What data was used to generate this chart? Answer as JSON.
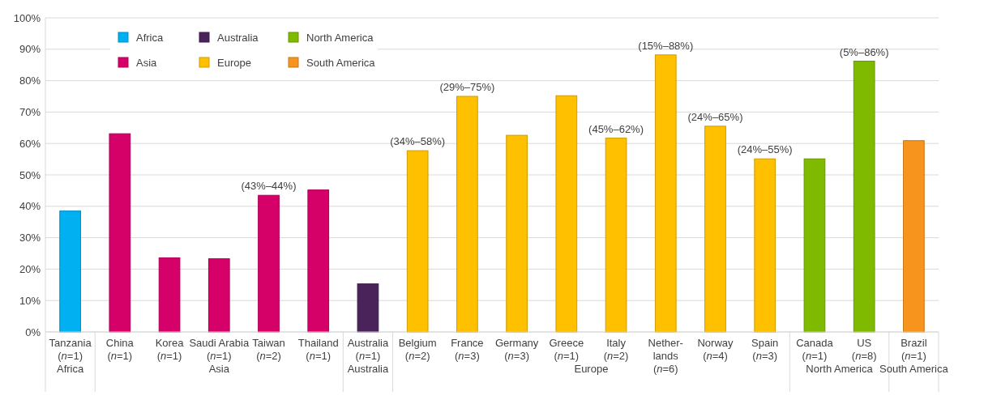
{
  "chart_data": {
    "type": "bar",
    "categories": [
      "Tanzania\n(n=1)",
      "China\n(n=1)",
      "Korea\n(n=1)",
      "Saudi Arabia\n(n=1)",
      "Taiwan\n(n=2)",
      "Thailand\n(n=1)",
      "Australia\n(n=1)",
      "Belgium\n(n=2)",
      "France\n(n=3)",
      "Germany\n(n=3)",
      "Greece\n(n=1)",
      "Italy\n(n=2)",
      "Nether-\nlands\n(n=6)",
      "Norway\n(n=4)",
      "Spain\n(n=3)",
      "Canada\n(n=1)",
      "US\n(n=8)",
      "Brazil\n(n=1)"
    ],
    "series": [
      {
        "name": "Africa",
        "color": "#00b0f0",
        "values": [
          38.5,
          null,
          null,
          null,
          null,
          null,
          null,
          null,
          null,
          null,
          null,
          null,
          null,
          null,
          null,
          null,
          null,
          null
        ]
      },
      {
        "name": "Asia",
        "color": "#d60069",
        "values": [
          null,
          63.1,
          23.6,
          23.3,
          43.5,
          45.2,
          null,
          null,
          null,
          null,
          null,
          null,
          null,
          null,
          null,
          null,
          null,
          null
        ]
      },
      {
        "name": "Australia",
        "color": "#4a235a",
        "values": [
          null,
          null,
          null,
          null,
          null,
          null,
          15.3,
          null,
          null,
          null,
          null,
          null,
          null,
          null,
          null,
          null,
          null,
          null
        ]
      },
      {
        "name": "Europe",
        "color": "#ffc000",
        "values": [
          null,
          null,
          null,
          null,
          null,
          null,
          null,
          57.7,
          75,
          62.6,
          75.2,
          61.7,
          88.2,
          65.5,
          55.1,
          null,
          null,
          null
        ]
      },
      {
        "name": "North America",
        "color": "#7fba00",
        "values": [
          null,
          null,
          null,
          null,
          null,
          null,
          null,
          null,
          null,
          null,
          null,
          null,
          null,
          null,
          null,
          55.1,
          86.2,
          null
        ]
      },
      {
        "name": "South America",
        "color": "#f7941d",
        "values": [
          null,
          null,
          null,
          null,
          null,
          null,
          null,
          null,
          null,
          null,
          null,
          null,
          null,
          null,
          null,
          null,
          null,
          60.9
        ]
      }
    ],
    "ylim": [
      0,
      100
    ],
    "yticks": [
      {
        "value": 0,
        "label": "0%"
      },
      {
        "value": 10,
        "label": "10%"
      },
      {
        "value": 20,
        "label": "20%"
      },
      {
        "value": 30,
        "label": "30%"
      },
      {
        "value": 40,
        "label": "40%"
      },
      {
        "value": 50,
        "label": "50%"
      },
      {
        "value": 60,
        "label": "60%"
      },
      {
        "value": 70,
        "label": "70%"
      },
      {
        "value": 80,
        "label": "80%"
      },
      {
        "value": 90,
        "label": "90%"
      },
      {
        "value": 100,
        "label": "100%"
      }
    ],
    "grid": "y",
    "legend": "top left",
    "annotations": [
      {
        "text": "(43%–44%)",
        "x": "Taiwan\n(n=2)",
        "y": 43.5
      },
      {
        "text": "(34%–58%)",
        "x": "Belgium\n(n=2)",
        "y": 57.7
      },
      {
        "text": "(29%–75%)",
        "x": "France\n(n=3)",
        "y": 75
      },
      {
        "text": "(45%–62%)",
        "x": "Italy\n(n=2)",
        "y": 61.7
      },
      {
        "text": "(15%–88%)",
        "x": "Nether-\nlands\n(n=6)",
        "y": 88.2
      },
      {
        "text": "(24%–65%)",
        "x": "Norway\n(n=4)",
        "y": 65.5
      },
      {
        "text": "(24%–55%)",
        "x": "Spain\n(n=3)",
        "y": 55.1
      },
      {
        "text": "(5%–86%)",
        "x": "US\n(n=8)",
        "y": 86.2
      }
    ]
  }
}
